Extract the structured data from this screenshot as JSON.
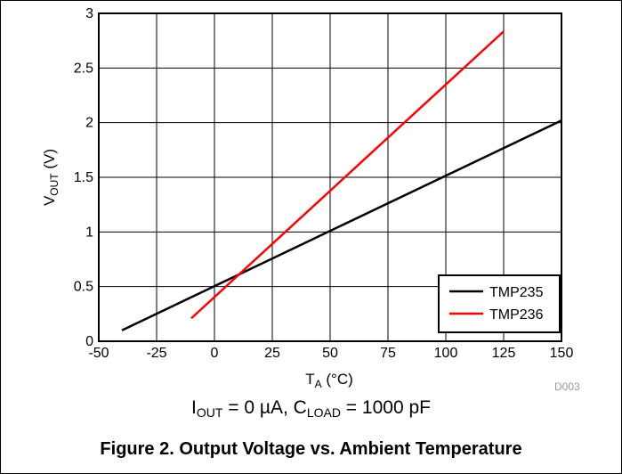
{
  "chart_data": {
    "type": "line",
    "title": "Figure 2. Output Voltage vs. Ambient Temperature",
    "xlabel": {
      "main": "T",
      "sub": "A",
      "unit": " (°C)"
    },
    "ylabel": {
      "main": "V",
      "sub": "OUT",
      "unit": " (V)"
    },
    "xlim": [
      -50,
      150
    ],
    "ylim": [
      0,
      3
    ],
    "xticks": [
      -50,
      -25,
      0,
      25,
      50,
      75,
      100,
      125,
      150
    ],
    "yticks": [
      0,
      0.5,
      1,
      1.5,
      2,
      2.5,
      3
    ],
    "xtick_labels": [
      "-50",
      "-25",
      "0",
      "25",
      "50",
      "75",
      "100",
      "125",
      "150"
    ],
    "ytick_labels": [
      "0",
      "0.5",
      "1",
      "1.5",
      "2",
      "2.5",
      "3"
    ],
    "grid": true,
    "legend_position": "bottom-right",
    "series": [
      {
        "name": "TMP235",
        "color": "#000000",
        "x": [
          -40,
          150
        ],
        "y": [
          0.1,
          2.02
        ]
      },
      {
        "name": "TMP236",
        "color": "#ff0000",
        "x": [
          -10,
          125
        ],
        "y": [
          0.21,
          2.835
        ]
      }
    ]
  },
  "figure_id": "D003",
  "conditions": {
    "i_main": "I",
    "i_sub": "OUT",
    "i_value": " = 0 µA, ",
    "c_main": "C",
    "c_sub": "LOAD",
    "c_value": " = 1000 pF"
  },
  "caption": "Figure 2. Output Voltage vs. Ambient Temperature"
}
